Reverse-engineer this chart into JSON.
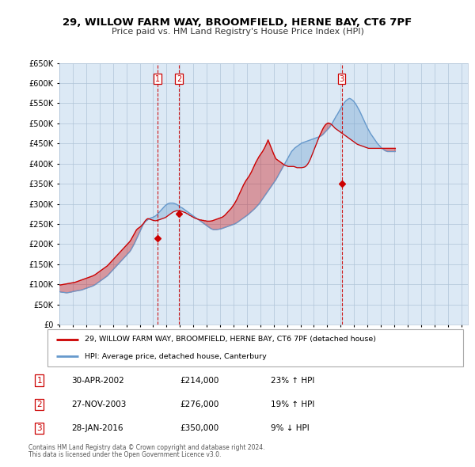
{
  "title": "29, WILLOW FARM WAY, BROOMFIELD, HERNE BAY, CT6 7PF",
  "subtitle": "Price paid vs. HM Land Registry's House Price Index (HPI)",
  "legend_line1": "29, WILLOW FARM WAY, BROOMFIELD, HERNE BAY, CT6 7PF (detached house)",
  "legend_line2": "HPI: Average price, detached house, Canterbury",
  "footer1": "Contains HM Land Registry data © Crown copyright and database right 2024.",
  "footer2": "This data is licensed under the Open Government Licence v3.0.",
  "ylim": [
    0,
    650000
  ],
  "yticks": [
    0,
    50000,
    100000,
    150000,
    200000,
    250000,
    300000,
    350000,
    400000,
    450000,
    500000,
    550000,
    600000,
    650000
  ],
  "xlim_start": 1995.0,
  "xlim_end": 2025.5,
  "transactions": [
    {
      "num": 1,
      "date": "30-APR-2002",
      "price": 214000,
      "pct": "23%",
      "dir": "↑",
      "x_year": 2002.33
    },
    {
      "num": 2,
      "date": "27-NOV-2003",
      "price": 276000,
      "pct": "19%",
      "dir": "↑",
      "x_year": 2003.92
    },
    {
      "num": 3,
      "date": "28-JAN-2016",
      "price": 350000,
      "pct": "9%",
      "dir": "↓",
      "x_year": 2016.08
    }
  ],
  "red_color": "#cc0000",
  "blue_color": "#6699cc",
  "chart_bg": "#dce9f5",
  "bg_color": "#ffffff",
  "grid_color": "#b0c4d8",
  "fill_red_alpha": 0.35,
  "fill_blue_alpha": 0.35,
  "hpi_data_monthly": {
    "start_year": 1995.0,
    "step": 0.08333,
    "values": [
      82000,
      81000,
      80500,
      80000,
      80000,
      79500,
      79000,
      79000,
      79500,
      80000,
      80500,
      81000,
      82000,
      82500,
      83000,
      83500,
      84000,
      84500,
      85000,
      85500,
      86000,
      87000,
      88000,
      89000,
      90000,
      91000,
      92000,
      93000,
      94000,
      95000,
      96000,
      97500,
      99000,
      101000,
      103000,
      105000,
      107000,
      109000,
      111000,
      113000,
      115000,
      117000,
      119000,
      121000,
      124000,
      127000,
      130000,
      133000,
      136000,
      139000,
      142000,
      145000,
      148000,
      151000,
      154000,
      157000,
      160000,
      163000,
      166000,
      169000,
      172000,
      175000,
      178000,
      181000,
      185000,
      190000,
      195000,
      200000,
      206000,
      212000,
      218000,
      224000,
      230000,
      236000,
      242000,
      248000,
      252000,
      256000,
      258000,
      260000,
      262000,
      264000,
      265000,
      266000,
      267000,
      268000,
      270000,
      272000,
      275000,
      278000,
      281000,
      284000,
      287000,
      290000,
      293000,
      296000,
      298000,
      300000,
      301000,
      302000,
      302000,
      302000,
      302000,
      301000,
      300000,
      299000,
      297000,
      295000,
      293000,
      291000,
      290000,
      288000,
      286000,
      284000,
      282000,
      280000,
      278000,
      276000,
      274000,
      272000,
      270000,
      268000,
      266000,
      264000,
      262000,
      260000,
      258000,
      256000,
      254000,
      252000,
      250000,
      248000,
      246000,
      244000,
      242000,
      240000,
      238000,
      237000,
      236000,
      236000,
      236000,
      236000,
      236500,
      237000,
      237500,
      238000,
      239000,
      240000,
      241000,
      242000,
      243000,
      244000,
      245000,
      246000,
      247000,
      248000,
      249000,
      250000,
      251500,
      253000,
      255000,
      257000,
      259000,
      261000,
      263000,
      265000,
      267000,
      269000,
      271000,
      273000,
      275500,
      278000,
      280500,
      283000,
      285500,
      288000,
      291000,
      294000,
      297000,
      300000,
      304000,
      308000,
      312000,
      316000,
      320000,
      324000,
      328000,
      332000,
      336000,
      340000,
      344000,
      348000,
      352000,
      356000,
      360000,
      365000,
      370000,
      375000,
      380000,
      385000,
      390000,
      395000,
      400000,
      405000,
      410000,
      415000,
      420000,
      425000,
      430000,
      433000,
      436000,
      439000,
      441000,
      443000,
      445000,
      447000,
      449000,
      451000,
      452000,
      453000,
      454000,
      455000,
      456000,
      457000,
      458000,
      459000,
      460000,
      461000,
      462000,
      463000,
      464000,
      465000,
      466000,
      467000,
      468000,
      470000,
      472000,
      475000,
      478000,
      481000,
      484000,
      487000,
      490000,
      494000,
      498000,
      503000,
      508000,
      513000,
      518000,
      522000,
      527000,
      532000,
      537000,
      542000,
      546000,
      550000,
      554000,
      557000,
      559000,
      561000,
      562000,
      561000,
      559000,
      557000,
      554000,
      550000,
      546000,
      541000,
      536000,
      531000,
      525000,
      519000,
      513000,
      507000,
      501000,
      495000,
      489000,
      484000,
      479000,
      474000,
      470000,
      466000,
      462000,
      458000,
      454000,
      450000,
      447000,
      444000,
      441000,
      438000,
      436000,
      434000,
      432000,
      431000,
      430000,
      430000,
      430000,
      430000,
      430000,
      430000,
      430000,
      430000
    ]
  },
  "red_data_monthly": {
    "start_year": 1995.0,
    "step": 0.08333,
    "values": [
      98000,
      98500,
      99000,
      99500,
      100000,
      100500,
      101000,
      101500,
      102000,
      102500,
      103000,
      103500,
      104000,
      104500,
      105000,
      106000,
      107000,
      108000,
      109000,
      110000,
      111000,
      112000,
      113000,
      114000,
      115000,
      116000,
      117000,
      118000,
      119000,
      120000,
      121000,
      122500,
      124000,
      126000,
      128000,
      130000,
      132000,
      134000,
      136000,
      138000,
      140000,
      142000,
      144000,
      146000,
      149000,
      152000,
      155000,
      158000,
      161000,
      164000,
      167000,
      170000,
      173000,
      176000,
      179000,
      182000,
      185000,
      188000,
      191000,
      194000,
      197000,
      200000,
      203000,
      206000,
      210000,
      215000,
      220000,
      225000,
      230000,
      235000,
      238000,
      240000,
      242000,
      244000,
      247000,
      250000,
      254000,
      258000,
      261000,
      263000,
      263000,
      262000,
      261000,
      260000,
      259000,
      258500,
      258000,
      258500,
      259000,
      260000,
      261000,
      262000,
      263000,
      264000,
      265000,
      266000,
      268000,
      270000,
      272000,
      274000,
      276000,
      278000,
      280000,
      281000,
      282000,
      283000,
      283000,
      283000,
      283000,
      282000,
      281000,
      280000,
      279000,
      278000,
      276000,
      275000,
      273000,
      271000,
      270000,
      268000,
      267000,
      265000,
      264000,
      263000,
      262000,
      261000,
      260000,
      260000,
      259000,
      259000,
      258000,
      258000,
      257000,
      257000,
      257000,
      257000,
      257500,
      258000,
      259000,
      260000,
      261000,
      262000,
      263000,
      264000,
      265000,
      266000,
      267000,
      269000,
      271000,
      274000,
      277000,
      280000,
      283000,
      286000,
      289000,
      293000,
      297000,
      301000,
      306000,
      311000,
      317000,
      323000,
      329000,
      335000,
      341000,
      347000,
      352000,
      357000,
      361000,
      365000,
      369000,
      374000,
      379000,
      385000,
      391000,
      397000,
      403000,
      408000,
      413000,
      418000,
      422000,
      426000,
      430000,
      435000,
      440000,
      446000,
      452000,
      459000,
      452000,
      445000,
      438000,
      431000,
      424000,
      418000,
      412000,
      410000,
      408000,
      406000,
      404000,
      402000,
      400000,
      398000,
      396000,
      395000,
      394000,
      393000,
      393000,
      393000,
      393000,
      393000,
      393000,
      392000,
      391000,
      390000,
      390000,
      390000,
      390000,
      390000,
      390500,
      391000,
      392000,
      394000,
      397000,
      401000,
      406000,
      412000,
      419000,
      426000,
      433000,
      440000,
      447000,
      454000,
      461000,
      468000,
      474000,
      480000,
      486000,
      491000,
      495000,
      498000,
      500000,
      501000,
      500000,
      499000,
      497000,
      494000,
      491000,
      488000,
      486000,
      484000,
      482000,
      480000,
      478000,
      476000,
      474000,
      472000,
      470000,
      468000,
      466000,
      464000,
      462000,
      460000,
      458000,
      456000,
      454000,
      452000,
      450000,
      448000,
      447000,
      446000,
      445000,
      444000,
      443000,
      442000,
      441000,
      440000,
      439000,
      438000,
      438000,
      438000,
      438000,
      438000,
      438000,
      438000,
      438000,
      438000,
      438000,
      438000,
      438000,
      438000,
      438000,
      438000,
      438000,
      438000,
      438000,
      438000,
      438000,
      438000,
      438000,
      438000,
      438000,
      438000
    ]
  }
}
